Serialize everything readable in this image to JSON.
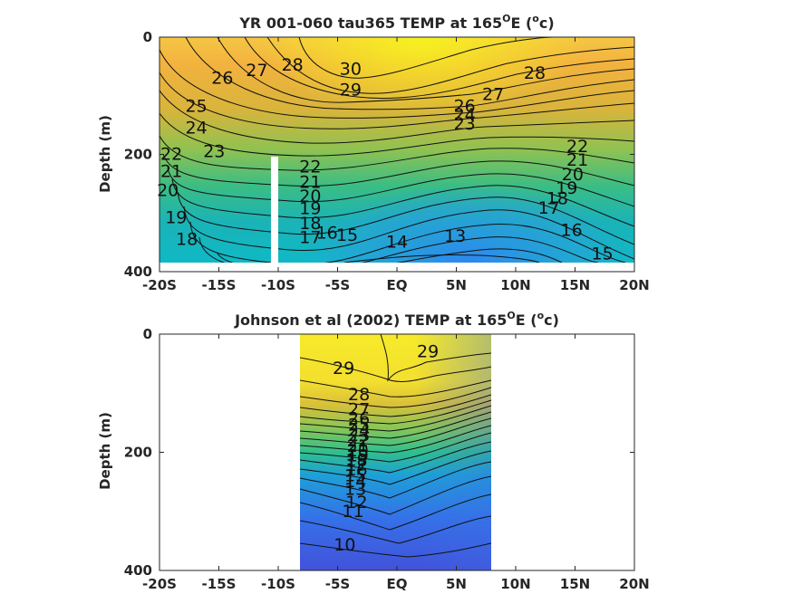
{
  "chart_data": [
    {
      "type": "contour",
      "title": "YR 001-060 tau365 TEMP at 165",
      "title_sup": "O",
      "title_tail": "E (",
      "title_sup2": "o",
      "title_end": "c)",
      "xlabel": "",
      "ylabel": "Depth (m)",
      "xlim": [
        -20,
        20
      ],
      "ylim": [
        0,
        400
      ],
      "y_reversed": true,
      "x_tick_values": [
        -20,
        -15,
        -10,
        -5,
        0,
        5,
        10,
        15,
        20
      ],
      "x_tick_labels": [
        "-20S",
        "-15S",
        "-10S",
        "-5S",
        "EQ",
        "5N",
        "10N",
        "15N",
        "20N"
      ],
      "y_tick_values": [
        0,
        200,
        400
      ],
      "y_tick_labels": [
        "0",
        "200",
        "400"
      ],
      "data_extent": {
        "x": [
          -20,
          20
        ],
        "depth": [
          0,
          380
        ]
      },
      "masked_column": {
        "x": [
          -10.3,
          -9.7
        ],
        "depth": [
          210,
          380
        ]
      },
      "contour_labels": [
        {
          "text": "30",
          "x": -3.9,
          "y": 55
        },
        {
          "text": "29",
          "x": -3.9,
          "y": 90
        },
        {
          "text": "28",
          "x": -8.8,
          "y": 48
        },
        {
          "text": "28",
          "x": 11.6,
          "y": 62
        },
        {
          "text": "27",
          "x": -11.8,
          "y": 57
        },
        {
          "text": "27",
          "x": 8.1,
          "y": 98
        },
        {
          "text": "26",
          "x": -14.7,
          "y": 70
        },
        {
          "text": "26",
          "x": 5.7,
          "y": 118
        },
        {
          "text": "25",
          "x": -16.9,
          "y": 118
        },
        {
          "text": "24",
          "x": 5.7,
          "y": 133
        },
        {
          "text": "24",
          "x": -16.9,
          "y": 155
        },
        {
          "text": "23",
          "x": 5.7,
          "y": 148
        },
        {
          "text": "23",
          "x": -15.4,
          "y": 195
        },
        {
          "text": "22",
          "x": -19.0,
          "y": 200
        },
        {
          "text": "22",
          "x": -7.3,
          "y": 222
        },
        {
          "text": "22",
          "x": 15.2,
          "y": 187
        },
        {
          "text": "21",
          "x": -19.0,
          "y": 229
        },
        {
          "text": "21",
          "x": -7.3,
          "y": 248
        },
        {
          "text": "21",
          "x": 15.2,
          "y": 210
        },
        {
          "text": "20",
          "x": -19.3,
          "y": 262
        },
        {
          "text": "20",
          "x": -7.3,
          "y": 272
        },
        {
          "text": "20",
          "x": 14.8,
          "y": 235
        },
        {
          "text": "19",
          "x": -18.6,
          "y": 308
        },
        {
          "text": "19",
          "x": -7.3,
          "y": 293
        },
        {
          "text": "19",
          "x": 14.3,
          "y": 258
        },
        {
          "text": "18",
          "x": -17.7,
          "y": 345
        },
        {
          "text": "18",
          "x": -7.3,
          "y": 318
        },
        {
          "text": "18",
          "x": 13.5,
          "y": 276
        },
        {
          "text": "17",
          "x": -7.3,
          "y": 342
        },
        {
          "text": "17",
          "x": 12.8,
          "y": 292
        },
        {
          "text": "16",
          "x": -5.9,
          "y": 334
        },
        {
          "text": "16",
          "x": 14.7,
          "y": 330
        },
        {
          "text": "15",
          "x": -4.2,
          "y": 338
        },
        {
          "text": "15",
          "x": 17.3,
          "y": 370
        },
        {
          "text": "14",
          "x": 0.0,
          "y": 350
        },
        {
          "text": "13",
          "x": 4.9,
          "y": 340
        }
      ]
    },
    {
      "type": "contour",
      "title": "Johnson et al (2002) TEMP at 165",
      "title_sup": "O",
      "title_tail": "E (",
      "title_sup2": "o",
      "title_end": "c)",
      "xlabel": "",
      "ylabel": "Depth (m)",
      "xlim": [
        -20,
        20
      ],
      "ylim": [
        0,
        400
      ],
      "y_reversed": true,
      "x_tick_values": [
        -20,
        -15,
        -10,
        -5,
        0,
        5,
        10,
        15,
        20
      ],
      "x_tick_labels": [
        "-20S",
        "-15S",
        "-10S",
        "-5S",
        "EQ",
        "5N",
        "10N",
        "15N",
        "20N"
      ],
      "y_tick_values": [
        0,
        200,
        400
      ],
      "y_tick_labels": [
        "0",
        "200",
        "400"
      ],
      "data_extent": {
        "x": [
          -8,
          8
        ],
        "depth": [
          0,
          400
        ]
      },
      "contour_labels": [
        {
          "text": "29",
          "x": -4.5,
          "y": 58
        },
        {
          "text": "29",
          "x": 2.6,
          "y": 30
        },
        {
          "text": "28",
          "x": -3.2,
          "y": 103
        },
        {
          "text": "27",
          "x": -3.2,
          "y": 128
        },
        {
          "text": "26",
          "x": -3.2,
          "y": 143
        },
        {
          "text": "25",
          "x": -3.2,
          "y": 154
        },
        {
          "text": "24",
          "x": -3.2,
          "y": 163
        },
        {
          "text": "23",
          "x": -3.2,
          "y": 172
        },
        {
          "text": "22",
          "x": -3.3,
          "y": 181
        },
        {
          "text": "21",
          "x": -3.3,
          "y": 190
        },
        {
          "text": "20",
          "x": -3.3,
          "y": 198
        },
        {
          "text": "19",
          "x": -3.3,
          "y": 206
        },
        {
          "text": "18",
          "x": -3.4,
          "y": 214
        },
        {
          "text": "17",
          "x": -3.4,
          "y": 222
        },
        {
          "text": "16",
          "x": -3.4,
          "y": 230
        },
        {
          "text": "15",
          "x": -3.5,
          "y": 240
        },
        {
          "text": "14",
          "x": -3.5,
          "y": 250
        },
        {
          "text": "13",
          "x": -3.5,
          "y": 263
        },
        {
          "text": "12",
          "x": -3.4,
          "y": 285
        },
        {
          "text": "11",
          "x": -3.7,
          "y": 300
        },
        {
          "text": "10",
          "x": -4.4,
          "y": 357
        }
      ]
    }
  ]
}
